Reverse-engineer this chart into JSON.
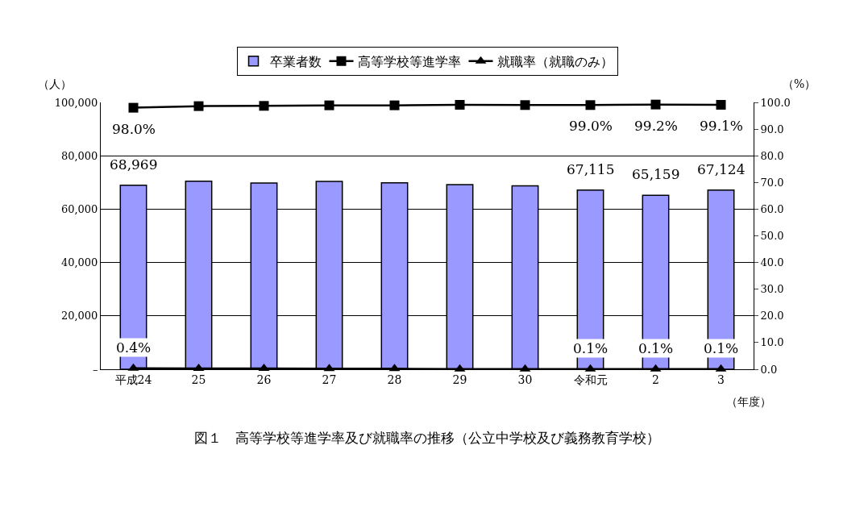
{
  "chart_data": {
    "type": "bar",
    "title": "図１　高等学校等進学率及び就職率の推移（公立中学校及び義務教育学校）",
    "ylabel": "（人）",
    "y2label": "（%）",
    "xlabel": "（年度）",
    "categories": [
      "平成24",
      "25",
      "26",
      "27",
      "28",
      "29",
      "30",
      "令和元",
      "2",
      "3"
    ],
    "series": [
      {
        "name": "卒業者数",
        "color": "#9999ff",
        "values": [
          68969,
          70500,
          69800,
          70400,
          69900,
          69200,
          68700,
          67115,
          65159,
          67124
        ],
        "value_labels": [
          "68,969",
          null,
          null,
          null,
          null,
          null,
          null,
          "67,115",
          "65,159",
          "67,124"
        ]
      },
      {
        "name": "高等学校等進学率",
        "type": "line",
        "axis": "y2",
        "marker": "square",
        "color": "#000000",
        "values": [
          98.0,
          98.6,
          98.7,
          98.9,
          98.9,
          99.1,
          99.0,
          99.0,
          99.2,
          99.1
        ],
        "value_labels": [
          "98.0%",
          null,
          null,
          null,
          null,
          null,
          null,
          "99.0%",
          "99.2%",
          "99.1%"
        ]
      },
      {
        "name": "就職率（就職のみ）",
        "type": "line",
        "axis": "y2",
        "marker": "triangle",
        "color": "#000000",
        "values": [
          0.4,
          0.3,
          0.3,
          0.2,
          0.2,
          0.1,
          0.1,
          0.1,
          0.1,
          0.1
        ],
        "value_labels": [
          "0.4%",
          null,
          null,
          null,
          null,
          null,
          null,
          "0.1%",
          "0.1%",
          "0.1%"
        ]
      }
    ],
    "ylim": [
      0,
      100000
    ],
    "yticks": [
      {
        "value": 0,
        "label": "–"
      },
      {
        "value": 20000,
        "label": "20,000"
      },
      {
        "value": 40000,
        "label": "40,000"
      },
      {
        "value": 60000,
        "label": "60,000"
      },
      {
        "value": 80000,
        "label": "80,000"
      },
      {
        "value": 100000,
        "label": "100,000"
      }
    ],
    "y2lim": [
      0,
      100
    ],
    "y2ticks": [
      {
        "value": 0,
        "label": "0.0"
      },
      {
        "value": 10,
        "label": "10.0"
      },
      {
        "value": 20,
        "label": "20.0"
      },
      {
        "value": 30,
        "label": "30.0"
      },
      {
        "value": 40,
        "label": "40.0"
      },
      {
        "value": 50,
        "label": "50.0"
      },
      {
        "value": 60,
        "label": "60.0"
      },
      {
        "value": 70,
        "label": "70.0"
      },
      {
        "value": 80,
        "label": "80.0"
      },
      {
        "value": 90,
        "label": "90.0"
      },
      {
        "value": 100,
        "label": "100.0"
      }
    ],
    "grid": "y",
    "legend": "top"
  }
}
